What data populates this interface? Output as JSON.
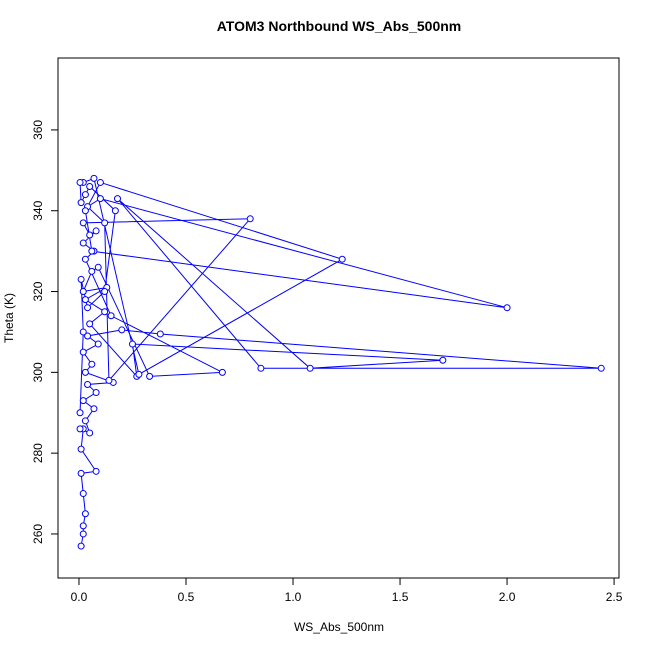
{
  "chart_data": {
    "type": "line",
    "title": "ATOM3 Northbound WS_Abs_500nm",
    "x_label": "WS_Abs_500nm",
    "y_label": "Theta (K)",
    "color": "#0000ff",
    "x": [
      0.01,
      0.02,
      0.02,
      0.03,
      0.02,
      0.01,
      0.08,
      0.01,
      0.02,
      0.005,
      0.05,
      0.03,
      0.07,
      0.02,
      0.08,
      0.04,
      0.16,
      0.03,
      0.06,
      0.02,
      0.09,
      0.04,
      0.2,
      0.38,
      2.44,
      0.85,
      0.18,
      1.08,
      1.7,
      0.25,
      0.27,
      0.05,
      0.12,
      0.03,
      0.13,
      0.02,
      0.06,
      0.09,
      0.33,
      0.67,
      0.15,
      0.03,
      0.07,
      0.02,
      0.08,
      0.05,
      0.02,
      0.8,
      0.14,
      0.12,
      0.04,
      0.1,
      2.0,
      0.06,
      0.03,
      0.1,
      1.23,
      0.28,
      0.07,
      0.02,
      0.005,
      0.01,
      0.03,
      0.05,
      0.17,
      0.12,
      0.04,
      0.01,
      0.02,
      0.005
    ],
    "values": [
      257,
      260,
      262,
      265,
      270,
      275,
      275.5,
      281,
      286,
      286,
      285,
      288,
      291,
      293,
      295,
      297,
      297.5,
      300,
      302,
      305,
      307,
      309,
      310.5,
      309.5,
      301,
      301,
      343,
      301,
      303,
      307,
      299,
      312,
      315,
      318,
      321,
      320,
      325,
      326,
      299,
      300,
      314,
      328,
      330,
      332,
      335,
      334,
      337,
      338,
      298,
      337,
      341,
      343,
      316,
      330,
      340,
      347,
      328,
      299.5,
      348,
      347,
      347,
      342,
      344,
      346,
      340,
      320,
      316,
      323,
      310,
      290
    ],
    "xlim": [
      -0.098,
      2.523
    ],
    "ylim": [
      249.1,
      377.8
    ],
    "xticks": [
      {
        "value": 0,
        "label": "0.0"
      },
      0.5,
      {
        "value": 1,
        "label": "1.0"
      },
      1.5,
      {
        "value": 2,
        "label": "2.0"
      },
      2.5
    ],
    "yticks": [
      260,
      280,
      300,
      320,
      340,
      360
    ]
  }
}
